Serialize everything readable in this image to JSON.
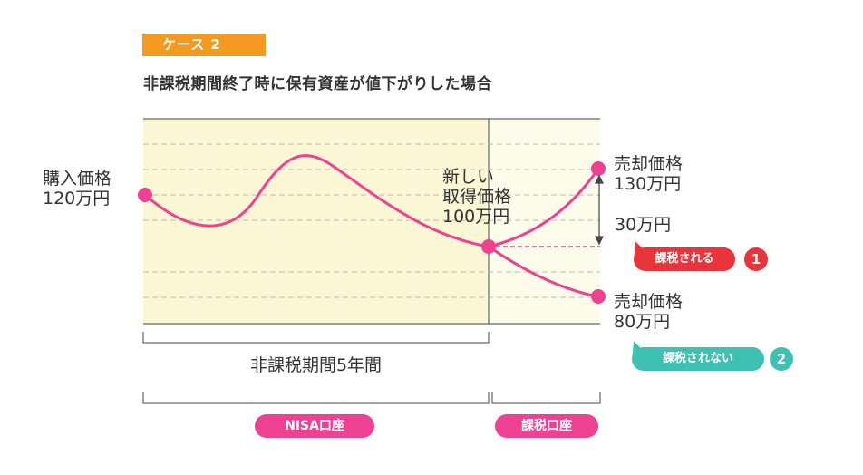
{
  "header": {
    "case_label": "ケース 2",
    "subtitle": "非課税期間終了時に保有資産が値下がりした場合"
  },
  "labels": {
    "purchase_price": [
      "購入価格",
      "120万円"
    ],
    "new_acquisition_price": [
      "新しい",
      "取得価格",
      "100万円"
    ],
    "sell_price_up": [
      "売却価格",
      "130万円"
    ],
    "difference": "30万円",
    "sell_price_down": [
      "売却価格",
      "80万円"
    ],
    "nontax_period": "非課税期間5年間"
  },
  "badges": {
    "taxed": "課税される",
    "taxed_num": "1",
    "not_taxed": "課税されない",
    "not_taxed_num": "2"
  },
  "accounts": {
    "nisa": "NISA口座",
    "taxable": "課税口座"
  },
  "colors": {
    "curve": "#ee4191",
    "nisa_zone": "#fbf6d3",
    "taxable_zone": "#fdfbe9",
    "case_badge": "#f39a1f",
    "taxed": "#e8343a",
    "not_taxed": "#3ec1b3"
  }
}
